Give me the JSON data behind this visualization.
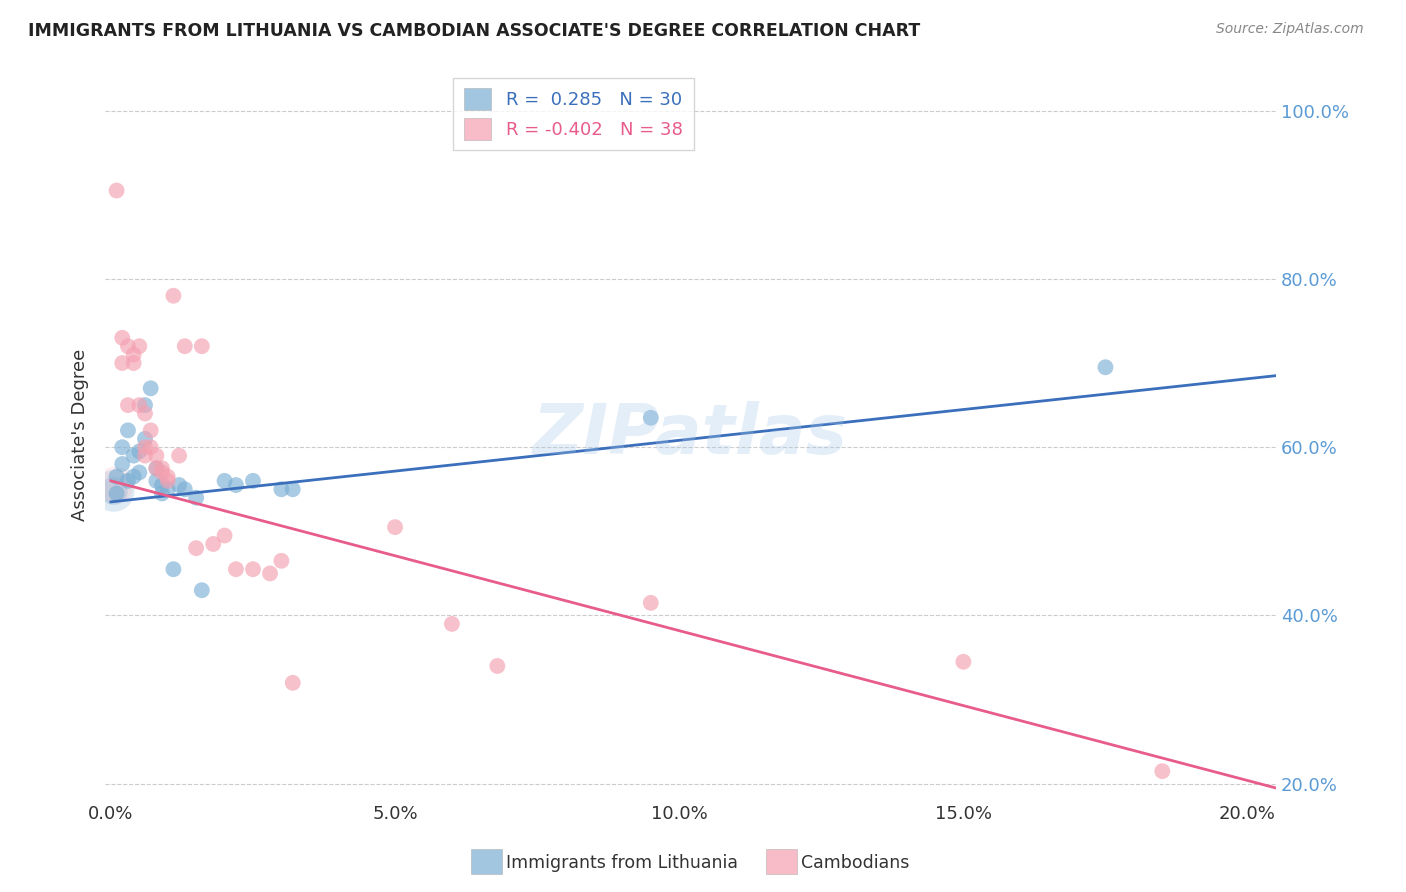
{
  "title": "IMMIGRANTS FROM LITHUANIA VS CAMBODIAN ASSOCIATE'S DEGREE CORRELATION CHART",
  "source": "Source: ZipAtlas.com",
  "ylabel": "Associate's Degree",
  "ylim": [
    0.18,
    1.05
  ],
  "xlim": [
    -0.001,
    0.205
  ],
  "ytick_positions": [
    0.2,
    0.4,
    0.6,
    0.8,
    1.0
  ],
  "ytick_labels": [
    "20.0%",
    "40.0%",
    "60.0%",
    "80.0%",
    "100.0%"
  ],
  "xtick_positions": [
    0.0,
    0.05,
    0.1,
    0.15,
    0.2
  ],
  "xtick_labels": [
    "0.0%",
    "5.0%",
    "10.0%",
    "15.0%",
    "20.0%"
  ],
  "legend_r_blue": "0.285",
  "legend_n_blue": "30",
  "legend_r_pink": "-0.402",
  "legend_n_pink": "38",
  "blue_color": "#7bafd4",
  "pink_color": "#f4a0b0",
  "blue_line_color": "#3b6fbb",
  "pink_line_color": "#e85c8a",
  "watermark": "ZIPatlas",
  "blue_scatter_x": [
    0.001,
    0.001,
    0.002,
    0.002,
    0.003,
    0.003,
    0.004,
    0.004,
    0.005,
    0.005,
    0.006,
    0.006,
    0.007,
    0.008,
    0.008,
    0.009,
    0.009,
    0.01,
    0.011,
    0.012,
    0.013,
    0.015,
    0.016,
    0.02,
    0.022,
    0.025,
    0.03,
    0.032,
    0.095,
    0.175
  ],
  "blue_scatter_y": [
    0.545,
    0.565,
    0.58,
    0.6,
    0.56,
    0.62,
    0.565,
    0.59,
    0.57,
    0.595,
    0.61,
    0.65,
    0.67,
    0.575,
    0.56,
    0.555,
    0.545,
    0.55,
    0.455,
    0.555,
    0.55,
    0.54,
    0.43,
    0.56,
    0.555,
    0.56,
    0.55,
    0.55,
    0.635,
    0.695
  ],
  "pink_scatter_x": [
    0.001,
    0.002,
    0.002,
    0.003,
    0.003,
    0.004,
    0.004,
    0.005,
    0.005,
    0.006,
    0.006,
    0.006,
    0.007,
    0.007,
    0.008,
    0.008,
    0.009,
    0.009,
    0.01,
    0.01,
    0.011,
    0.012,
    0.013,
    0.015,
    0.016,
    0.018,
    0.02,
    0.022,
    0.025,
    0.028,
    0.03,
    0.032,
    0.05,
    0.06,
    0.068,
    0.095,
    0.15,
    0.185
  ],
  "pink_scatter_y": [
    0.905,
    0.73,
    0.7,
    0.72,
    0.65,
    0.71,
    0.7,
    0.65,
    0.72,
    0.64,
    0.6,
    0.59,
    0.62,
    0.6,
    0.575,
    0.59,
    0.575,
    0.57,
    0.56,
    0.565,
    0.78,
    0.59,
    0.72,
    0.48,
    0.72,
    0.485,
    0.495,
    0.455,
    0.455,
    0.45,
    0.465,
    0.32,
    0.505,
    0.39,
    0.34,
    0.415,
    0.345,
    0.215
  ],
  "blue_line_x": [
    0.0,
    0.205
  ],
  "blue_line_y": [
    0.535,
    0.685
  ],
  "pink_line_x": [
    0.0,
    0.205
  ],
  "pink_line_y": [
    0.56,
    0.195
  ]
}
